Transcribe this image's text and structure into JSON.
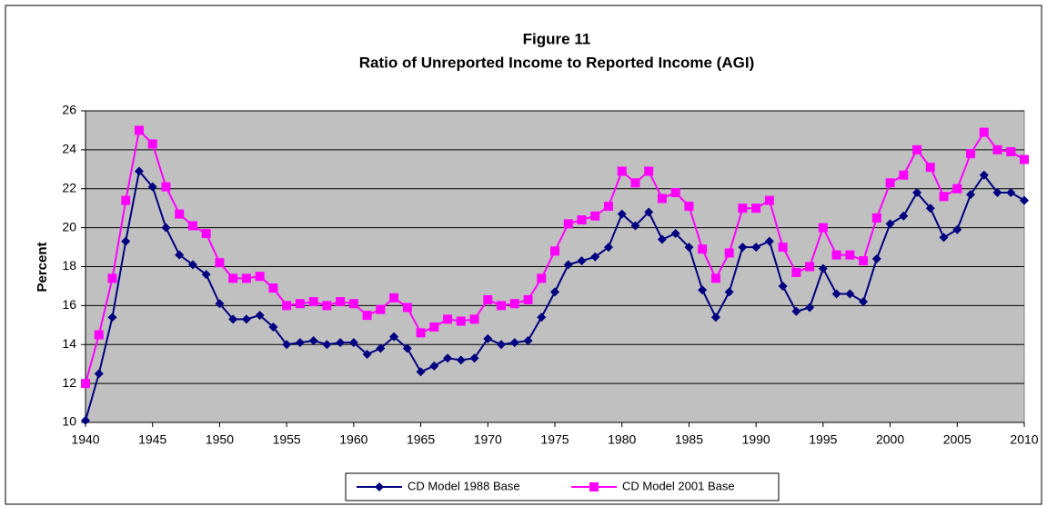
{
  "chart_data": {
    "type": "line",
    "title": "Figure 11",
    "subtitle": "Ratio of Unreported Income to Reported Income (AGI)",
    "y_label": "Percent",
    "x": [
      1940,
      1941,
      1942,
      1943,
      1944,
      1945,
      1946,
      1947,
      1948,
      1949,
      1950,
      1951,
      1952,
      1953,
      1954,
      1955,
      1956,
      1957,
      1958,
      1959,
      1960,
      1961,
      1962,
      1963,
      1964,
      1965,
      1966,
      1967,
      1968,
      1969,
      1970,
      1971,
      1972,
      1973,
      1974,
      1975,
      1976,
      1977,
      1978,
      1979,
      1980,
      1981,
      1982,
      1983,
      1984,
      1985,
      1986,
      1987,
      1988,
      1989,
      1990,
      1991,
      1992,
      1993,
      1994,
      1995,
      1996,
      1997,
      1998,
      1999,
      2000,
      2001,
      2002,
      2003,
      2004,
      2005,
      2006,
      2007,
      2008,
      2009,
      2010
    ],
    "series": [
      {
        "name": "CD Model 1988 Base",
        "color": "#000080",
        "marker": "diamond",
        "values": [
          10.1,
          12.5,
          15.4,
          19.3,
          22.9,
          22.1,
          20.0,
          18.6,
          18.1,
          17.6,
          16.1,
          15.3,
          15.3,
          15.5,
          14.9,
          14.0,
          14.1,
          14.2,
          14.0,
          14.1,
          14.1,
          13.5,
          13.8,
          14.4,
          13.8,
          12.6,
          12.9,
          13.3,
          13.2,
          13.3,
          14.3,
          14.0,
          14.1,
          14.2,
          15.4,
          16.7,
          18.1,
          18.3,
          18.5,
          19.0,
          20.7,
          20.1,
          20.8,
          19.4,
          19.7,
          19.0,
          16.8,
          15.4,
          16.7,
          19.0,
          19.0,
          19.3,
          17.0,
          15.7,
          15.9,
          17.9,
          16.6,
          16.6,
          16.2,
          18.4,
          20.2,
          20.6,
          21.8,
          21.0,
          19.5,
          19.9,
          21.7,
          22.7,
          21.8,
          21.8,
          21.4
        ]
      },
      {
        "name": "CD Model 2001 Base",
        "color": "#ff00ff",
        "marker": "square",
        "values": [
          12.0,
          14.5,
          17.4,
          21.4,
          25.0,
          24.3,
          22.1,
          20.7,
          20.1,
          19.7,
          18.2,
          17.4,
          17.4,
          17.5,
          16.9,
          16.0,
          16.1,
          16.2,
          16.0,
          16.2,
          16.1,
          15.5,
          15.8,
          16.4,
          15.9,
          14.6,
          14.9,
          15.3,
          15.2,
          15.3,
          16.3,
          16.0,
          16.1,
          16.3,
          17.4,
          18.8,
          20.2,
          20.4,
          20.6,
          21.1,
          22.9,
          22.3,
          22.9,
          21.5,
          21.8,
          21.1,
          18.9,
          17.4,
          18.7,
          21.0,
          21.0,
          21.4,
          19.0,
          17.7,
          18.0,
          20.0,
          18.6,
          18.6,
          18.3,
          20.5,
          22.3,
          22.7,
          24.0,
          23.1,
          21.6,
          22.0,
          23.8,
          24.9,
          24.0,
          23.9,
          23.5
        ]
      }
    ],
    "xlim": [
      1940,
      2010
    ],
    "xticks": [
      1940,
      1945,
      1950,
      1955,
      1960,
      1965,
      1970,
      1975,
      1980,
      1985,
      1990,
      1995,
      2000,
      2005,
      2010
    ],
    "ylim": [
      10,
      26
    ],
    "yticks": [
      10,
      12,
      14,
      16,
      18,
      20,
      22,
      24,
      26
    ],
    "grid": true,
    "plot_background": "#c0c0c0",
    "legend": "bottom"
  }
}
